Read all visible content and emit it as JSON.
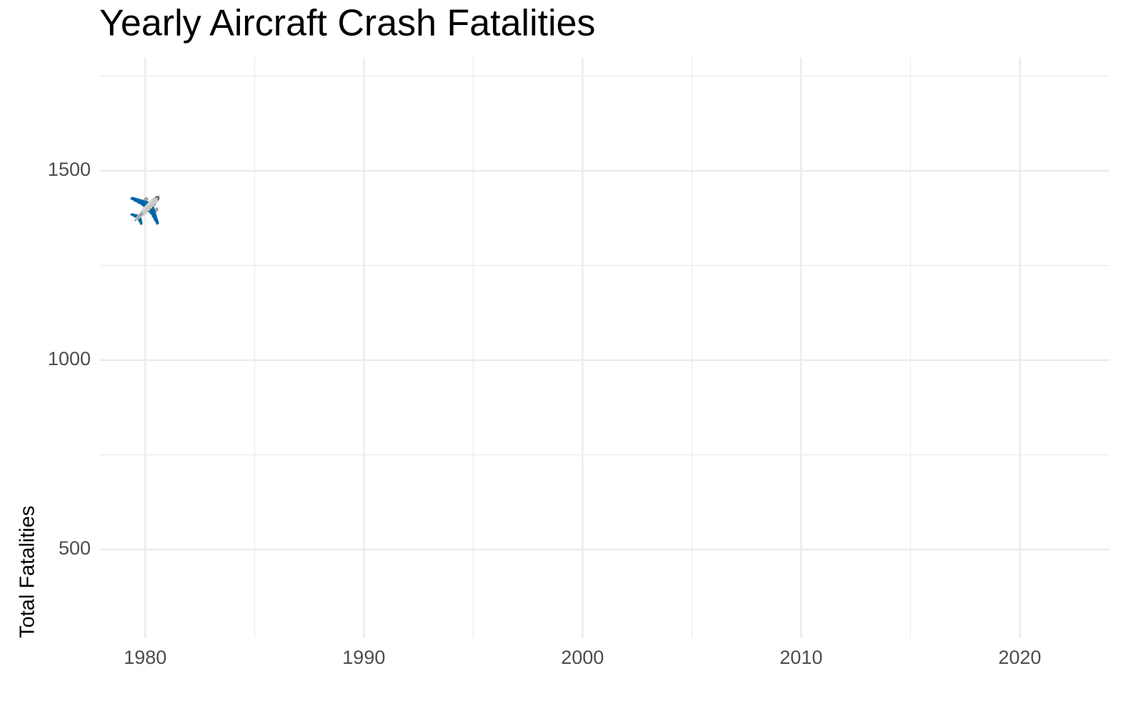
{
  "chart_data": {
    "type": "scatter",
    "title": "Yearly Aircraft Crash Fatalities",
    "y_label": "Total Fatalities",
    "x": [
      1980
    ],
    "values": [
      1390
    ],
    "marker": "✈️",
    "xlim": [
      1977.9,
      2024.1
    ],
    "xticks": [
      1980,
      1990,
      2000,
      2010,
      2020
    ],
    "xminor": [
      1985,
      1995,
      2005,
      2015
    ],
    "ylim": [
      266,
      1800
    ],
    "yticks": [
      500,
      1000,
      1500
    ],
    "yminor": [
      750,
      1250,
      1750
    ],
    "grid": true,
    "grid_color": "#ebebeb"
  }
}
